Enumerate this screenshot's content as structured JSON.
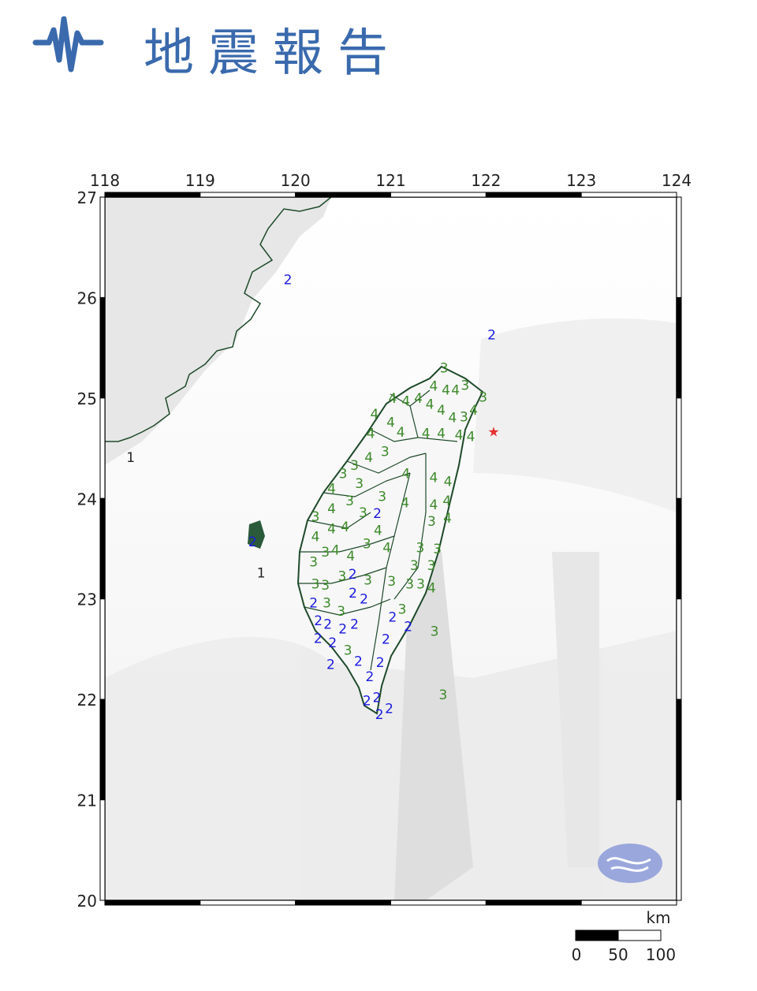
{
  "header": {
    "title": "地震報告",
    "icon": "seismic-wave-icon",
    "color": "#3a6aad"
  },
  "map": {
    "lon_range": [
      118,
      124
    ],
    "lat_range": [
      20,
      27
    ],
    "lon_ticks": [
      "118",
      "119",
      "120",
      "121",
      "122",
      "123",
      "124"
    ],
    "lat_ticks": [
      "27",
      "26",
      "25",
      "24",
      "23",
      "22",
      "21",
      "20"
    ],
    "epicenter": {
      "lon": 122.08,
      "lat": 24.68,
      "symbol": "star",
      "color": "#e53030"
    },
    "intensity_colors": {
      "1": "#222222",
      "2": "#1a1adf",
      "3": "#3d8a2a",
      "4": "#3d8a2a"
    },
    "stations": [
      [
        122.06,
        25.63,
        2
      ],
      [
        119.92,
        26.18,
        2
      ],
      [
        119.55,
        23.57,
        2
      ],
      [
        119.64,
        23.26,
        1
      ],
      [
        118.27,
        24.41,
        1
      ],
      [
        121.56,
        25.3,
        3
      ],
      [
        121.45,
        25.12,
        4
      ],
      [
        121.58,
        25.08,
        4
      ],
      [
        121.68,
        25.08,
        4
      ],
      [
        121.78,
        25.13,
        3
      ],
      [
        121.16,
        24.97,
        4
      ],
      [
        121.02,
        25.0,
        4
      ],
      [
        121.29,
        25.0,
        4
      ],
      [
        121.41,
        24.94,
        4
      ],
      [
        121.53,
        24.88,
        4
      ],
      [
        121.87,
        24.88,
        4
      ],
      [
        121.97,
        25.01,
        3
      ],
      [
        121.91,
        24.86,
        3
      ],
      [
        120.83,
        24.84,
        4
      ],
      [
        121.0,
        24.76,
        4
      ],
      [
        121.08,
        24.66,
        4
      ],
      [
        120.79,
        24.65,
        4
      ],
      [
        120.94,
        24.47,
        3
      ],
      [
        121.37,
        24.65,
        4
      ],
      [
        121.53,
        24.65,
        4
      ],
      [
        121.7,
        24.65,
        4
      ],
      [
        121.84,
        24.62,
        4
      ],
      [
        121.74,
        24.72,
        4
      ],
      [
        120.77,
        24.41,
        4
      ],
      [
        120.62,
        24.33,
        3
      ],
      [
        120.5,
        24.25,
        3
      ],
      [
        121.16,
        24.25,
        4
      ],
      [
        121.45,
        24.21,
        4
      ],
      [
        121.6,
        24.17,
        4
      ],
      [
        120.67,
        24.15,
        3
      ],
      [
        120.38,
        24.1,
        4
      ],
      [
        120.57,
        23.98,
        3
      ],
      [
        120.91,
        24.02,
        3
      ],
      [
        120.86,
        23.9,
        2
      ],
      [
        121.15,
        23.96,
        4
      ],
      [
        121.45,
        23.94,
        4
      ],
      [
        121.59,
        23.98,
        4
      ],
      [
        120.21,
        23.82,
        3
      ],
      [
        120.38,
        23.9,
        4
      ],
      [
        120.71,
        23.86,
        3
      ],
      [
        120.85,
        23.7,
        4
      ],
      [
        121.43,
        23.82,
        3
      ],
      [
        121.58,
        23.82,
        4
      ],
      [
        120.21,
        23.62,
        4
      ],
      [
        120.38,
        23.7,
        4
      ],
      [
        120.52,
        23.72,
        4
      ],
      [
        120.75,
        23.55,
        3
      ],
      [
        120.96,
        23.51,
        4
      ],
      [
        121.31,
        23.51,
        3
      ],
      [
        121.49,
        23.5,
        3
      ],
      [
        120.19,
        23.37,
        3
      ],
      [
        120.29,
        23.47,
        3
      ],
      [
        120.42,
        23.49,
        4
      ],
      [
        120.58,
        23.43,
        4
      ],
      [
        121.23,
        23.35,
        3
      ],
      [
        121.41,
        23.35,
        3
      ],
      [
        120.21,
        23.15,
        3
      ],
      [
        120.29,
        23.14,
        3
      ],
      [
        120.49,
        23.23,
        3
      ],
      [
        120.6,
        23.25,
        2
      ],
      [
        120.76,
        23.19,
        3
      ],
      [
        121.01,
        23.18,
        3
      ],
      [
        121.2,
        23.15,
        3
      ],
      [
        121.29,
        23.15,
        3
      ],
      [
        121.38,
        23.11,
        4
      ],
      [
        120.19,
        23.01,
        2
      ],
      [
        120.33,
        23.01,
        3
      ],
      [
        120.57,
        23.09,
        2
      ],
      [
        120.62,
        23.0,
        2
      ],
      [
        120.24,
        22.88,
        2
      ],
      [
        120.48,
        22.88,
        3
      ],
      [
        121.12,
        22.9,
        3
      ],
      [
        121.07,
        22.82,
        2
      ],
      [
        121.15,
        22.76,
        2
      ],
      [
        121.46,
        22.68,
        3
      ],
      [
        120.29,
        22.75,
        2
      ],
      [
        120.48,
        22.72,
        2
      ],
      [
        120.62,
        22.75,
        2
      ],
      [
        120.27,
        22.64,
        2
      ],
      [
        120.39,
        22.59,
        2
      ],
      [
        120.55,
        22.49,
        3
      ],
      [
        120.95,
        22.6,
        2
      ],
      [
        120.37,
        22.35,
        2
      ],
      [
        120.61,
        22.38,
        2
      ],
      [
        120.89,
        22.37,
        2
      ],
      [
        120.78,
        22.23,
        2
      ],
      [
        121.55,
        22.05,
        3
      ],
      [
        120.75,
        21.99,
        2
      ],
      [
        120.83,
        22.02,
        2
      ],
      [
        120.79,
        21.94,
        2
      ],
      [
        120.86,
        21.91,
        2
      ]
    ],
    "scale_bar": {
      "unit": "km",
      "labels": [
        "0",
        "50",
        "100"
      ]
    },
    "logo": "cwa-logo"
  }
}
